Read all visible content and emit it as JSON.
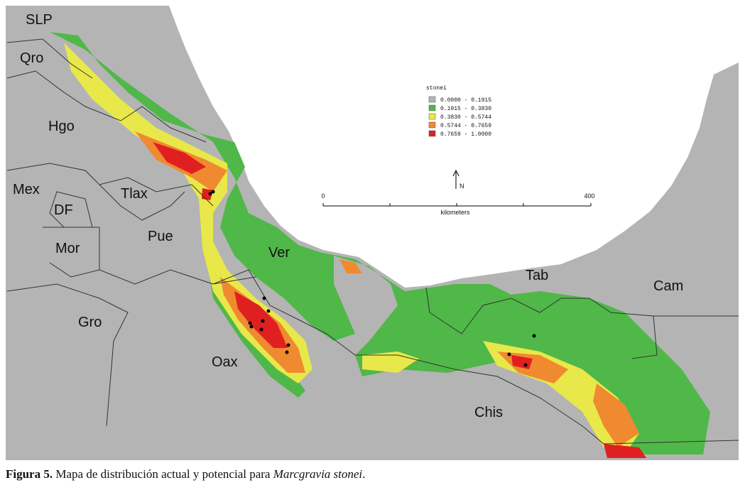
{
  "map": {
    "state_labels": [
      "SLP",
      "Qro",
      "Hgo",
      "Mex",
      "DF",
      "Tlax",
      "Mor",
      "Pue",
      "Ver",
      "Gro",
      "Oax",
      "Tab",
      "Cam",
      "Chis"
    ],
    "legend": {
      "title": "stonei",
      "items": [
        {
          "label": "0.0000 - 0.1915",
          "color": "#b4b4b4"
        },
        {
          "label": "0.1915 - 0.3830",
          "color": "#4fb848"
        },
        {
          "label": "0.3830 - 0.5744",
          "color": "#e8e84a"
        },
        {
          "label": "0.5744 - 0.7659",
          "color": "#f08a30"
        },
        {
          "label": "0.7659 - 1.0000",
          "color": "#e02020"
        }
      ]
    },
    "scale_bar": {
      "start": "0",
      "end": "400",
      "unit": "kilometers"
    },
    "north": "N"
  },
  "caption": {
    "label": "Figura 5.",
    "text": "Mapa de distribución actual y potencial para",
    "species": "Marcgravia stonei",
    "end": "."
  }
}
